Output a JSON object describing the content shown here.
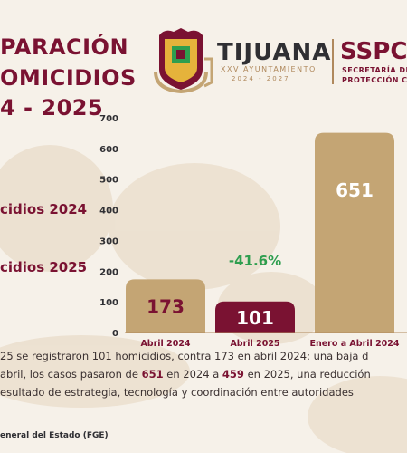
{
  "title": {
    "line1": "PARACIÓN",
    "line2": "OMICIDIOS",
    "line3": "4 - 2025"
  },
  "logos": {
    "tijuana": "TIJUANA",
    "tijuana_sub1": "XXV AYUNTAMIENTO",
    "tijuana_sub2": "2024 - 2027",
    "sspc": "SSPC",
    "sspc_sub1": "SECRETARÍA DE SE",
    "sspc_sub2": "PROTECCIÓN CIU"
  },
  "legend": {
    "item1": "cidios 2024",
    "item2": "cidios 2025"
  },
  "chart_data": {
    "type": "bar",
    "categories": [
      "Abril 2024",
      "Abril 2025",
      "Enero a Abril 2024"
    ],
    "values": [
      173,
      101,
      651
    ],
    "value_labels": [
      "173",
      "101",
      "651"
    ],
    "ylim": [
      0,
      700
    ],
    "yticks": [
      0,
      50,
      100,
      150,
      200,
      250,
      300,
      350,
      400,
      450,
      500,
      550,
      600,
      650,
      700
    ],
    "colors": [
      "#c4a574",
      "#7a1232",
      "#c4a574"
    ],
    "label_colors": [
      "#7a1232",
      "#ffffff",
      "#ffffff"
    ],
    "annotation": "-41.6%",
    "annotation_color": "#2e9e4f",
    "grid": false
  },
  "description": {
    "line1_a": "25 se registraron 101 homicidios, contra 173 en abril 2024: una baja d",
    "line2_a": "abril, los casos pasaron de ",
    "line2_h1": "651",
    "line2_b": " en 2024 a ",
    "line2_h2": "459",
    "line2_c": " en 2025, una reducción",
    "line3_a": "esultado de estrategia, tecnología y coordinación entre autoridades"
  },
  "source": "eneral del Estado (FGE)"
}
